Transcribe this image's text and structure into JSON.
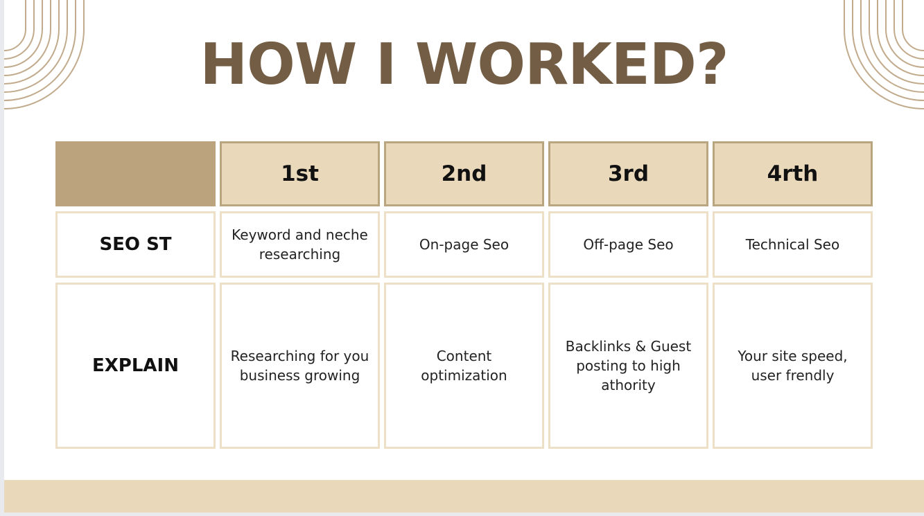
{
  "slide": {
    "title": "HOW I WORKED?",
    "colors": {
      "title": "#735e45",
      "accent_dark": "#bba37e",
      "accent_light": "#ead8ba",
      "cell_border": "#ede0c6"
    }
  },
  "table": {
    "headers": [
      "",
      "1st",
      "2nd",
      "3rd",
      "4rth"
    ],
    "rows": [
      {
        "label": "SEO ST",
        "cells": [
          "Keyword and neche researching",
          "On-page Seo",
          "Off-page Seo",
          "Technical Seo"
        ]
      },
      {
        "label": "EXPLAIN",
        "cells": [
          "Researching for you business growing",
          "Content optimization",
          "Backlinks & Guest posting to high athority",
          "Your site speed, user frendly"
        ]
      }
    ]
  }
}
